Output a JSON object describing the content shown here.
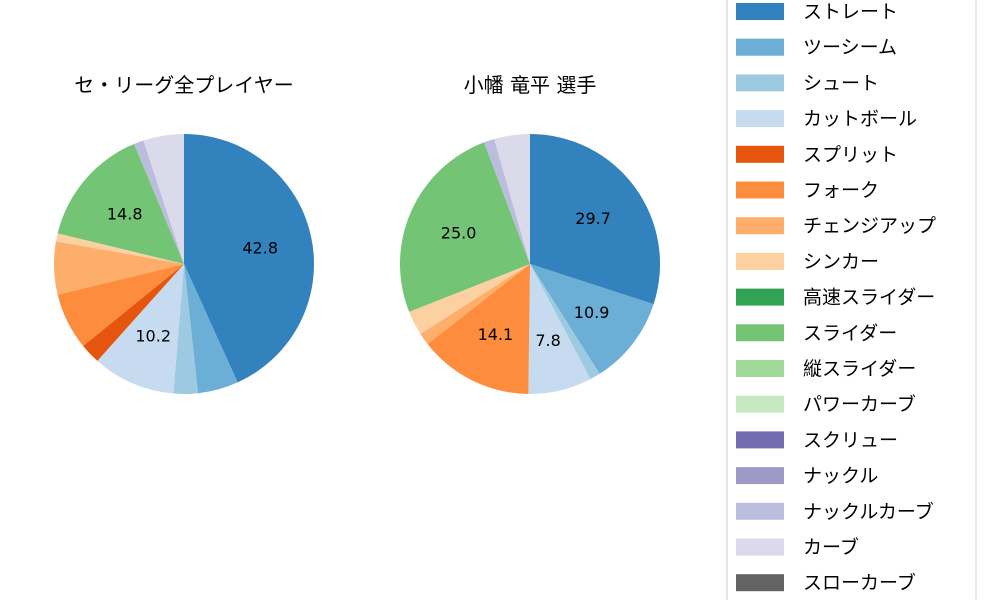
{
  "chart_data": [
    {
      "type": "pie",
      "title": "セ・リーグ全プレイヤー",
      "slices": [
        {
          "label": "ストレート",
          "value": 42.8,
          "color": "#3182bd",
          "show_value": true
        },
        {
          "label": "ツーシーム",
          "value": 5.0,
          "color": "#6baed6",
          "show_value": false
        },
        {
          "label": "シュート",
          "value": 3.0,
          "color": "#9ecae1",
          "show_value": false
        },
        {
          "label": "カットボール",
          "value": 10.2,
          "color": "#c6dbef",
          "show_value": true
        },
        {
          "label": "スプリット",
          "value": 2.5,
          "color": "#e6550d",
          "show_value": false
        },
        {
          "label": "フォーク",
          "value": 7.0,
          "color": "#fd8d3c",
          "show_value": false
        },
        {
          "label": "チェンジアップ",
          "value": 6.5,
          "color": "#fdae6b",
          "show_value": false
        },
        {
          "label": "シンカー",
          "value": 1.0,
          "color": "#fdd0a2",
          "show_value": false
        },
        {
          "label": "スライダー",
          "value": 14.8,
          "color": "#74c476",
          "show_value": true
        },
        {
          "label": "ナックルカーブ",
          "value": 1.2,
          "color": "#bcbddc",
          "show_value": false
        },
        {
          "label": "カーブ",
          "value": 5.0,
          "color": "#dadaeb",
          "show_value": false
        }
      ]
    },
    {
      "type": "pie",
      "title": "小幡 竜平 選手",
      "slices": [
        {
          "label": "ストレート",
          "value": 29.7,
          "color": "#3182bd",
          "show_value": true
        },
        {
          "label": "ツーシーム",
          "value": 10.9,
          "color": "#6baed6",
          "show_value": true
        },
        {
          "label": "シュート",
          "value": 1.3,
          "color": "#9ecae1",
          "show_value": false
        },
        {
          "label": "カットボール",
          "value": 7.8,
          "color": "#c6dbef",
          "show_value": true
        },
        {
          "label": "フォーク",
          "value": 14.1,
          "color": "#fd8d3c",
          "show_value": true
        },
        {
          "label": "チェンジアップ",
          "value": 1.5,
          "color": "#fdae6b",
          "show_value": false
        },
        {
          "label": "シンカー",
          "value": 3.0,
          "color": "#fdd0a2",
          "show_value": false
        },
        {
          "label": "スライダー",
          "value": 25.0,
          "color": "#74c476",
          "show_value": true
        },
        {
          "label": "ナックルカーブ",
          "value": 1.3,
          "color": "#bcbddc",
          "show_value": false
        },
        {
          "label": "カーブ",
          "value": 4.4,
          "color": "#dadaeb",
          "show_value": false
        }
      ]
    }
  ],
  "legend": {
    "placement": "right",
    "entries": [
      {
        "label": "ストレート",
        "color": "#3182bd"
      },
      {
        "label": "ツーシーム",
        "color": "#6baed6"
      },
      {
        "label": "シュート",
        "color": "#9ecae1"
      },
      {
        "label": "カットボール",
        "color": "#c6dbef"
      },
      {
        "label": "スプリット",
        "color": "#e6550d"
      },
      {
        "label": "フォーク",
        "color": "#fd8d3c"
      },
      {
        "label": "チェンジアップ",
        "color": "#fdae6b"
      },
      {
        "label": "シンカー",
        "color": "#fdd0a2"
      },
      {
        "label": "高速スライダー",
        "color": "#31a354"
      },
      {
        "label": "スライダー",
        "color": "#74c476"
      },
      {
        "label": "縦スライダー",
        "color": "#a1d99b"
      },
      {
        "label": "パワーカーブ",
        "color": "#c7e9c0"
      },
      {
        "label": "スクリュー",
        "color": "#756bb1"
      },
      {
        "label": "ナックル",
        "color": "#9e9ac8"
      },
      {
        "label": "ナックルカーブ",
        "color": "#bcbddc"
      },
      {
        "label": "カーブ",
        "color": "#dadaeb"
      },
      {
        "label": "スローカーブ",
        "color": "#636363"
      }
    ]
  }
}
